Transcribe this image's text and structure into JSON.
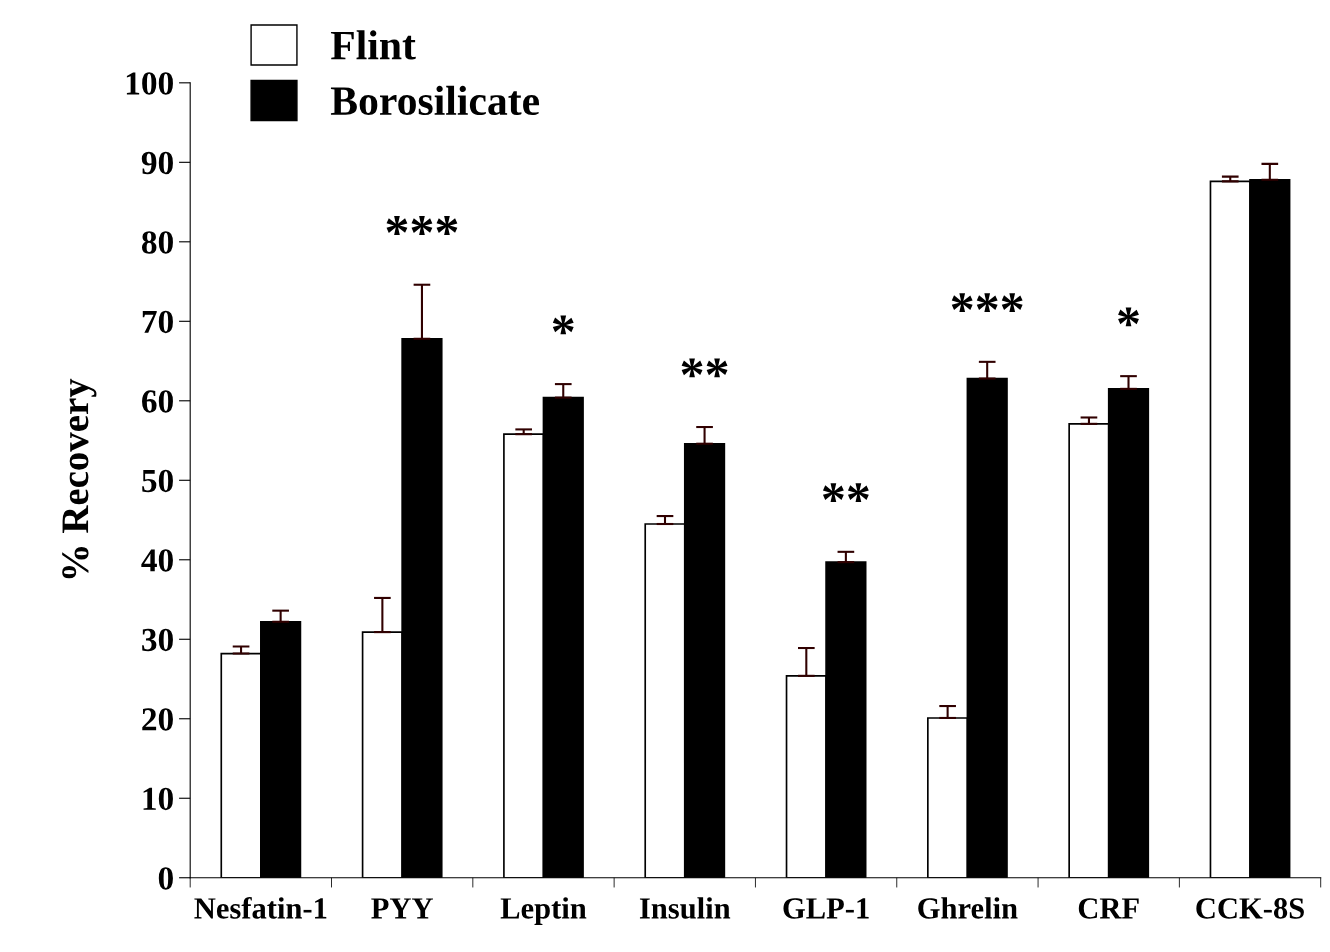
{
  "chart_data": {
    "type": "bar",
    "ylabel": "% Recovery",
    "categories": [
      "Nesfatin-1",
      "PYY",
      "Leptin",
      "Insulin",
      "GLP-1",
      "Ghrelin",
      "CRF",
      "CCK-8S"
    ],
    "series": [
      {
        "name": "Flint",
        "color": "#ffffff",
        "values": [
          28.2,
          30.9,
          55.8,
          44.5,
          25.4,
          20.1,
          57.1,
          87.6
        ],
        "errors": [
          [
            28.2,
            29.1
          ],
          [
            30.9,
            35.2
          ],
          [
            55.8,
            56.4
          ],
          [
            44.5,
            45.5
          ],
          [
            25.4,
            28.9
          ],
          [
            20.1,
            21.6
          ],
          [
            57.1,
            57.9
          ],
          [
            87.6,
            88.2
          ]
        ]
      },
      {
        "name": "Borosilicate",
        "color": "#000000",
        "values": [
          32.2,
          67.8,
          60.4,
          54.6,
          39.7,
          62.8,
          61.5,
          87.8
        ],
        "errors": [
          [
            32.2,
            33.6
          ],
          [
            67.8,
            74.6
          ],
          [
            60.4,
            62.1
          ],
          [
            54.6,
            56.7
          ],
          [
            39.7,
            41.0
          ],
          [
            62.8,
            64.9
          ],
          [
            61.5,
            63.1
          ],
          [
            87.8,
            89.8
          ]
        ]
      }
    ],
    "ylim": [
      0,
      100
    ],
    "yticks": [
      0,
      10,
      20,
      30,
      40,
      50,
      60,
      70,
      80,
      90,
      100
    ],
    "annotations": [
      "***",
      "*",
      "**",
      "**",
      "***",
      "*"
    ],
    "legend": "top left",
    "grid": false
  }
}
